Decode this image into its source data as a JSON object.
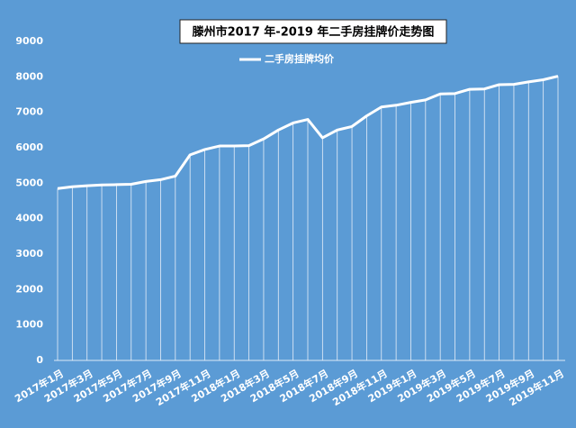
{
  "chart_data": {
    "type": "line",
    "title": "滕州市2017 年-2019 年二手房挂牌价走势图",
    "categories": [
      "2017年1月",
      null,
      "2017年3月",
      null,
      "2017年5月",
      null,
      "2017年7月",
      null,
      "2017年9月",
      null,
      "2017年11月",
      null,
      "2018年1月",
      null,
      "2018年3月",
      null,
      "2018年5月",
      null,
      "2018年7月",
      null,
      "2018年9月",
      null,
      "2018年11月",
      null,
      "2019年1月",
      null,
      "2019年3月",
      null,
      "2019年5月",
      null,
      "2019年7月",
      null,
      "2019年9月",
      null,
      "2019年11月"
    ],
    "series": [
      {
        "name": "二手房挂牌均价",
        "color": "#ffffff",
        "values": [
          4850,
          4900,
          4930,
          4950,
          4960,
          4970,
          5050,
          5100,
          5200,
          5800,
          5950,
          6050,
          6050,
          6060,
          6250,
          6500,
          6700,
          6800,
          6280,
          6500,
          6600,
          6900,
          7150,
          7200,
          7280,
          7350,
          7520,
          7530,
          7650,
          7660,
          7780,
          7790,
          7860,
          7920,
          8020
        ]
      }
    ],
    "ylim": [
      0,
      9000
    ],
    "yticks": [
      0,
      1000,
      2000,
      3000,
      4000,
      5000,
      6000,
      7000,
      8000,
      9000
    ]
  }
}
